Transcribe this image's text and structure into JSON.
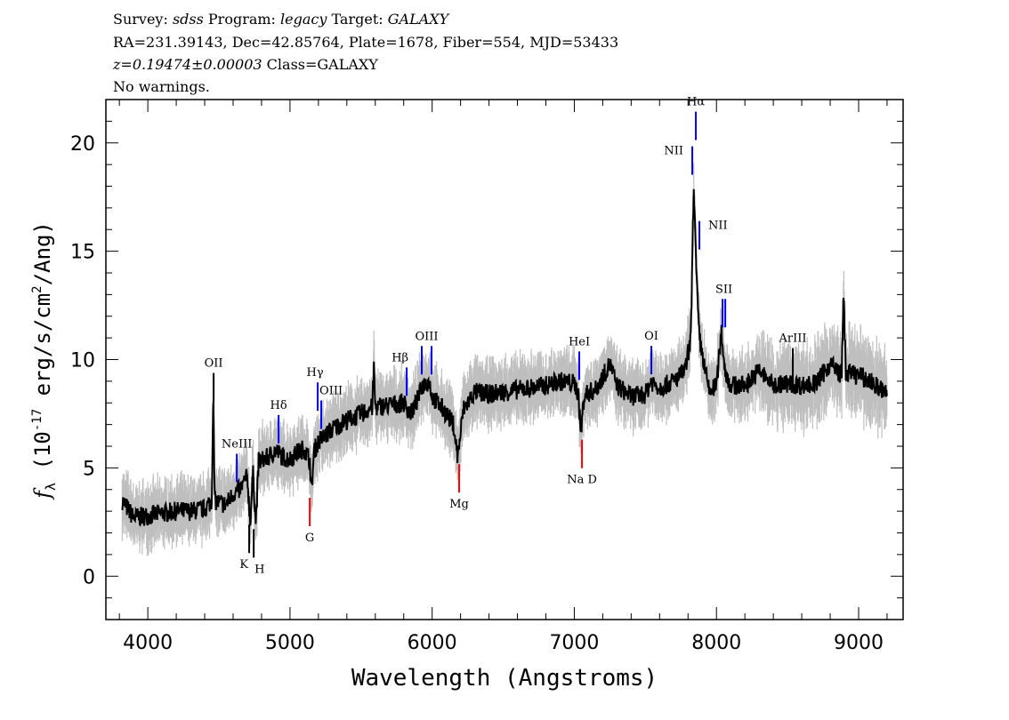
{
  "header": {
    "line1": [
      "Survey: ",
      "sdss",
      " Program: ",
      "legacy",
      " Target: ",
      "GALAXY"
    ],
    "line2": "RA=231.39143, Dec=42.85764, Plate=1678, Fiber=554, MJD=53433",
    "line3_italic": "z=0.19474±0.00003",
    "line3_rest": " Class=GALAXY",
    "line4": "No warnings."
  },
  "chart_data": {
    "type": "line",
    "xlabel": "Wavelength (Angstroms)",
    "ylabel": "f_λ (10^-17 erg/s/cm^2/Ang)",
    "xlim": [
      3705,
      9313
    ],
    "ylim": [
      -2,
      22
    ],
    "xticks": [
      4000,
      5000,
      6000,
      7000,
      8000,
      9000
    ],
    "yticks": [
      0,
      5,
      10,
      15,
      20
    ],
    "grid": false,
    "colors": {
      "flux": "#000000",
      "error_band": "#bfbfbf",
      "emission": "#0000ff",
      "absorption": "#ff0000",
      "other": "#000000"
    },
    "spectrum": {
      "x": [
        3820,
        3900,
        4000,
        4100,
        4200,
        4300,
        4400,
        4450,
        4460,
        4470,
        4500,
        4550,
        4600,
        4650,
        4700,
        4720,
        4740,
        4760,
        4780,
        4850,
        4900,
        4950,
        5000,
        5050,
        5100,
        5140,
        5150,
        5170,
        5200,
        5300,
        5400,
        5500,
        5580,
        5590,
        5600,
        5700,
        5800,
        5850,
        5900,
        5930,
        5980,
        6000,
        6100,
        6150,
        6180,
        6220,
        6300,
        6400,
        6500,
        6600,
        6700,
        6800,
        6900,
        7000,
        7030,
        7045,
        7070,
        7150,
        7250,
        7300,
        7400,
        7500,
        7540,
        7600,
        7700,
        7780,
        7820,
        7840,
        7860,
        7880,
        7920,
        7950,
        8000,
        8035,
        8060,
        8100,
        8200,
        8300,
        8400,
        8500,
        8600,
        8700,
        8800,
        8880,
        8895,
        8910,
        9000,
        9100,
        9200
      ],
      "y": [
        3.5,
        2.7,
        2.8,
        2.9,
        3.0,
        3.0,
        3.1,
        3.5,
        8.8,
        3.5,
        3.4,
        3.3,
        3.8,
        4.0,
        4.6,
        2.5,
        4.8,
        2.5,
        5.3,
        5.5,
        5.8,
        5.5,
        5.4,
        5.7,
        5.9,
        5.3,
        3.8,
        5.8,
        6.2,
        6.8,
        7.2,
        7.5,
        7.8,
        9.8,
        7.8,
        7.9,
        8.0,
        7.5,
        8.2,
        8.8,
        9.0,
        8.3,
        7.5,
        7.0,
        5.5,
        7.7,
        8.5,
        8.4,
        8.5,
        8.6,
        8.7,
        8.8,
        9.0,
        8.9,
        8.4,
        6.5,
        8.4,
        8.6,
        9.8,
        8.8,
        8.3,
        8.4,
        9.0,
        8.7,
        9.0,
        9.5,
        11.0,
        18.2,
        13.6,
        11.0,
        9.5,
        8.5,
        8.8,
        11.3,
        9.5,
        8.8,
        8.8,
        9.5,
        8.8,
        8.9,
        8.8,
        8.9,
        9.8,
        9.3,
        12.9,
        9.4,
        9.3,
        8.9,
        8.4
      ]
    },
    "lines": [
      {
        "label": "OII",
        "wavelength": 4463,
        "type": "other"
      },
      {
        "label": "NeIII",
        "wavelength": 4626,
        "type": "emission"
      },
      {
        "label": "Hδ",
        "wavelength": 4920,
        "type": "emission"
      },
      {
        "label": "Hγ",
        "wavelength": 5195,
        "type": "emission"
      },
      {
        "label": "OIII",
        "wavelength": 5220,
        "type": "emission"
      },
      {
        "label": "Hβ",
        "wavelength": 5821,
        "type": "emission"
      },
      {
        "label": "OIII",
        "wavelength": 5927,
        "type": "emission",
        "pair": 5996
      },
      {
        "label": "HeI",
        "wavelength": 7035,
        "type": "emission"
      },
      {
        "label": "OI",
        "wavelength": 7542,
        "type": "emission"
      },
      {
        "label": "NII",
        "wavelength": 7830,
        "type": "emission"
      },
      {
        "label": "Hα",
        "wavelength": 7855,
        "type": "emission"
      },
      {
        "label": "NII",
        "wavelength": 7880,
        "type": "emission"
      },
      {
        "label": "SII",
        "wavelength": 8043,
        "type": "emission",
        "pair": 8062
      },
      {
        "label": "ArIII",
        "wavelength": 8537,
        "type": "other"
      },
      {
        "label": "K",
        "wavelength": 4713,
        "type": "other",
        "below": true
      },
      {
        "label": "H",
        "wavelength": 4745,
        "type": "other",
        "below": true
      },
      {
        "label": "G",
        "wavelength": 5139,
        "type": "absorption",
        "below": true
      },
      {
        "label": "Mg",
        "wavelength": 6190,
        "type": "absorption",
        "below": true
      },
      {
        "label": "Na D",
        "wavelength": 7054,
        "type": "absorption",
        "below": true
      }
    ]
  }
}
